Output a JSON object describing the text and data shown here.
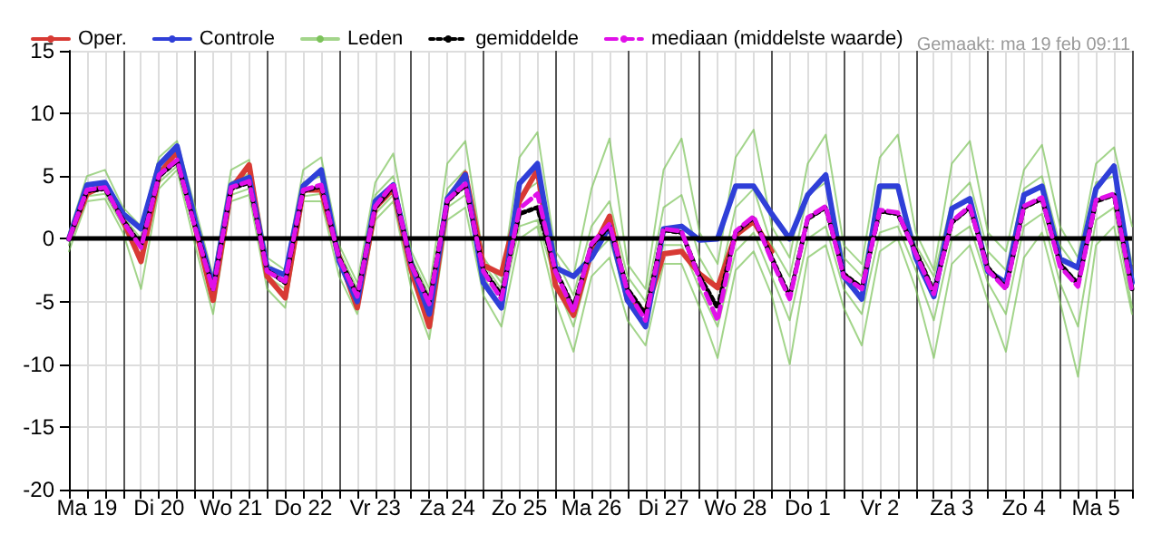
{
  "chart_data": {
    "type": "line",
    "annotations": [
      "Gemaakt: ma 19 feb 09:11"
    ],
    "categories": [
      null,
      "Ma 19",
      null,
      null,
      null,
      "Di 20",
      null,
      null,
      null,
      "Wo 21",
      null,
      null,
      null,
      "Do 22",
      null,
      null,
      null,
      "Vr 23",
      null,
      null,
      null,
      "Za 24",
      null,
      null,
      null,
      "Zo 25",
      null,
      null,
      null,
      "Ma 26",
      null,
      null,
      null,
      "Di 27",
      null,
      null,
      null,
      "Wo 28",
      null,
      null,
      null,
      "Do 1",
      null,
      null,
      null,
      "Vr 2",
      null,
      null,
      null,
      "Za 3",
      null,
      null,
      null,
      "Zo 4",
      null,
      null,
      null,
      "Ma 5",
      null,
      null
    ],
    "ylim": [
      -20,
      15
    ],
    "yticks": [
      -20,
      -15,
      -10,
      -5,
      0,
      5,
      10,
      15
    ],
    "grid": true,
    "legend": "top",
    "marker": "none",
    "ref_lines": [
      {
        "axis": "y",
        "value": 0,
        "color": "#000000"
      }
    ],
    "series": [
      {
        "name": "Oper.",
        "color": "#d83a34",
        "values": [
          0,
          3.6,
          4.3,
          1.5,
          -1.8,
          5.1,
          7.0,
          1.0,
          -4.9,
          4.0,
          5.9,
          -3.0,
          -4.7,
          3.9,
          3.9,
          -1.5,
          -5.5,
          2.5,
          4.0,
          -2.5,
          -7.0,
          3.0,
          5.2,
          -2.1,
          -2.8,
          3.0,
          5.5,
          -3.7,
          -6.1,
          -1.0,
          1.8,
          -4.9,
          -5.9,
          -1.2,
          -1.0,
          -2.8,
          -3.9,
          0.3,
          1.4,
          -1.0,
          null,
          null,
          null,
          null,
          null,
          null,
          null,
          null,
          null,
          null,
          null,
          null,
          null,
          null,
          null,
          null,
          null,
          null,
          null,
          null
        ]
      },
      {
        "name": "Controle",
        "color": "#2f3fd8",
        "values": [
          0,
          4.3,
          4.5,
          2.0,
          0.8,
          5.9,
          7.4,
          1.5,
          -3.8,
          4.3,
          4.9,
          -2.3,
          -2.9,
          4.2,
          5.5,
          -1.8,
          -5.0,
          3.0,
          4.3,
          -2.0,
          -6.0,
          3.2,
          5.1,
          -3.5,
          -5.5,
          4.4,
          6.0,
          -2.3,
          -3.0,
          -1.5,
          1.0,
          -4.9,
          -7.0,
          0.8,
          1.0,
          -0.1,
          0.0,
          4.2,
          4.2,
          2.0,
          0.0,
          3.5,
          5.1,
          -3.0,
          -4.8,
          4.2,
          4.2,
          -1.5,
          -4.6,
          2.4,
          3.2,
          -2.6,
          -3.5,
          3.5,
          4.2,
          -1.6,
          -2.3,
          4.0,
          5.8,
          -3.5
        ]
      },
      {
        "name": "Leden",
        "color": "#7cc35a",
        "values": [
          0.5,
          5.0,
          5.5,
          2.5,
          1.0,
          6.5,
          7.8,
          2.5,
          -3.0,
          5.5,
          6.3,
          -1.5,
          -2.5,
          5.5,
          6.5,
          -0.5,
          -3.5,
          4.5,
          6.8,
          -1.0,
          -4.0,
          6.0,
          7.8,
          -1.5,
          -3.5,
          6.5,
          8.5,
          -1.0,
          -3.0,
          4.0,
          8.0,
          -2.0,
          -4.0,
          5.5,
          8.0,
          0.5,
          -2.0,
          6.5,
          8.7,
          1.0,
          -1.5,
          6.0,
          8.3,
          -0.5,
          -2.0,
          6.5,
          8.3,
          0.5,
          -2.5,
          6.0,
          7.8,
          0.5,
          -1.0,
          5.5,
          7.5,
          1.0,
          -1.5,
          6.0,
          7.3,
          1.0
        ]
      },
      {
        "color": "#7cc35a",
        "values": [
          -1.0,
          3.0,
          3.2,
          0.5,
          -4.0,
          4.0,
          5.5,
          -0.5,
          -6.0,
          3.0,
          3.5,
          -4.0,
          -5.5,
          3.0,
          3.0,
          -3.0,
          -6.0,
          1.5,
          3.0,
          -4.0,
          -8.0,
          1.5,
          2.5,
          -4.5,
          -7.0,
          0.0,
          1.0,
          -5.0,
          -9.0,
          -3.0,
          -1.5,
          -6.5,
          -8.5,
          -2.0,
          -2.0,
          -5.5,
          -9.5,
          -2.5,
          -1.0,
          -4.5,
          -10.0,
          -1.5,
          -0.5,
          -5.5,
          -8.5,
          -1.0,
          0.0,
          -4.0,
          -9.5,
          -2.0,
          -0.5,
          -5.0,
          -9.0,
          -1.5,
          0.5,
          -5.0,
          -11.0,
          -0.5,
          1.0,
          -6.0
        ]
      },
      {
        "color": "#7cc35a",
        "values": [
          0.2,
          4.2,
          4.5,
          1.8,
          0.0,
          5.5,
          6.8,
          1.5,
          -3.5,
          4.5,
          5.2,
          -2.0,
          -3.0,
          4.5,
          5.0,
          -1.0,
          -4.0,
          3.5,
          5.0,
          -1.5,
          -4.5,
          4.0,
          5.5,
          -2.0,
          -4.0,
          3.5,
          4.5,
          -1.5,
          -4.5,
          1.0,
          3.0,
          -3.0,
          -5.0,
          2.5,
          3.5,
          -1.5,
          -4.0,
          2.5,
          4.0,
          -0.5,
          -3.0,
          3.5,
          4.5,
          -1.5,
          -3.0,
          4.0,
          4.0,
          -0.5,
          -3.0,
          3.0,
          4.5,
          -1.0,
          -2.5,
          4.0,
          5.0,
          -0.5,
          -2.5,
          4.5,
          5.0,
          -2.0
        ]
      },
      {
        "color": "#7cc35a",
        "values": [
          -0.5,
          3.4,
          3.6,
          1.0,
          -2.0,
          4.5,
          5.8,
          0.5,
          -4.5,
          3.5,
          4.0,
          -3.0,
          -4.0,
          3.4,
          3.6,
          -2.0,
          -5.0,
          2.0,
          3.5,
          -3.0,
          -6.0,
          2.5,
          3.5,
          -3.0,
          -5.5,
          1.0,
          1.5,
          -3.5,
          -7.0,
          -1.5,
          0.0,
          -5.0,
          -7.0,
          -0.5,
          -0.5,
          -4.0,
          -7.0,
          -1.0,
          0.5,
          -3.0,
          -6.5,
          0.0,
          1.0,
          -4.0,
          -6.0,
          0.5,
          1.0,
          -2.5,
          -6.5,
          0.0,
          1.0,
          -3.5,
          -6.0,
          1.0,
          2.0,
          -3.5,
          -7.0,
          1.5,
          2.5,
          -5.5
        ]
      },
      {
        "name": "gemiddelde",
        "color": "#000000",
        "line_style": "dotted",
        "values": [
          0,
          3.8,
          4.0,
          1.5,
          -0.5,
          5.0,
          6.2,
          1.0,
          -4.0,
          4.0,
          4.5,
          -2.5,
          -3.5,
          3.8,
          4.2,
          -1.5,
          -4.5,
          2.5,
          4.2,
          -2.0,
          -5.0,
          3.0,
          4.3,
          -2.5,
          -4.5,
          2.0,
          2.5,
          -2.5,
          -5.5,
          -0.5,
          1.0,
          -4.0,
          -6.0,
          0.7,
          0.5,
          -3.0,
          -5.5,
          0.5,
          1.7,
          -1.5,
          -4.6,
          1.6,
          2.5,
          -2.8,
          -3.9,
          2.2,
          2.0,
          -1.0,
          -4.2,
          1.3,
          2.5,
          -2.3,
          -3.9,
          2.5,
          3.2,
          -2.0,
          -3.6,
          3.0,
          3.5,
          -4.0
        ]
      },
      {
        "name": "mediaan (middelste waarde)",
        "color": "#e010e8",
        "line_style": "dashed",
        "values": [
          0,
          3.9,
          4.1,
          1.4,
          -0.7,
          5.1,
          6.3,
          0.9,
          -4.1,
          4.1,
          4.6,
          -2.6,
          -3.4,
          3.9,
          4.3,
          -1.6,
          -4.6,
          2.6,
          4.4,
          -2.1,
          -5.2,
          3.1,
          4.4,
          -2.6,
          -4.8,
          2.4,
          3.6,
          -2.6,
          -5.8,
          -0.4,
          1.2,
          -4.2,
          -6.5,
          0.8,
          0.6,
          -3.2,
          -6.5,
          0.6,
          1.8,
          -1.7,
          -4.8,
          1.7,
          2.6,
          -3.0,
          -4.0,
          2.3,
          2.1,
          -1.2,
          -4.4,
          1.4,
          2.6,
          -2.5,
          -4.0,
          2.6,
          3.3,
          -2.2,
          -3.8,
          3.1,
          3.6,
          -4.2
        ]
      }
    ]
  }
}
